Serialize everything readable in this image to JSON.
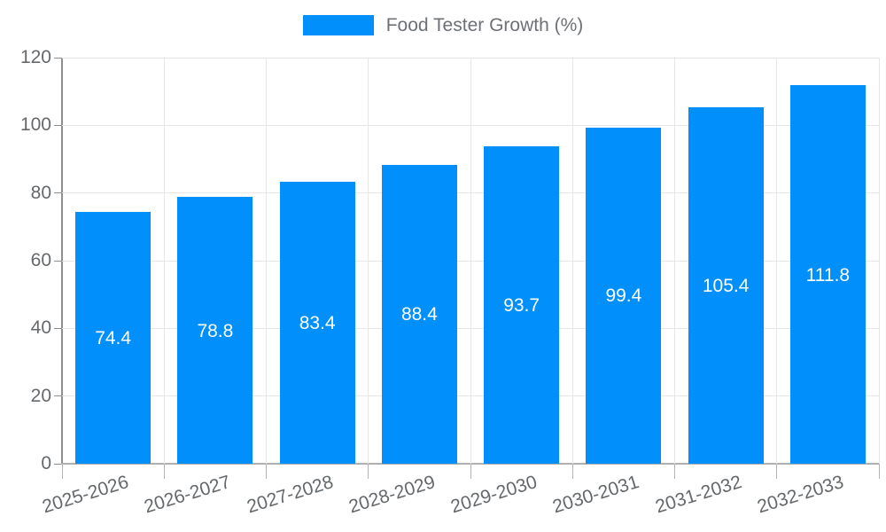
{
  "chart_data": {
    "type": "bar",
    "title": "Food Tester Growth (%)",
    "legend_entries": [
      "Food Tester Growth (%)"
    ],
    "legend_position": "top-center",
    "categories": [
      "2025-2026",
      "2026-2027",
      "2027-2028",
      "2028-2029",
      "2029-2030",
      "2030-2031",
      "2031-2032",
      "2032-2033"
    ],
    "values": [
      74.4,
      78.8,
      83.4,
      88.4,
      93.7,
      99.4,
      105.4,
      111.8
    ],
    "value_labels": [
      "74.4",
      "78.8",
      "83.4",
      "88.4",
      "93.7",
      "99.4",
      "105.4",
      "111.8"
    ],
    "xlabel": "",
    "ylabel": "",
    "ylim": [
      0,
      120
    ],
    "yticks": [
      0,
      20,
      40,
      60,
      80,
      100,
      120
    ],
    "ytick_labels": [
      "0",
      "20",
      "40",
      "60",
      "80",
      "100",
      "120"
    ],
    "grid": true
  },
  "colors": {
    "bar": "#008FFB",
    "value_label_text": "#ffffff",
    "axis_text": "#65696c",
    "legend_text": "#6d7175",
    "grid_line": "#e7e7e7",
    "axis_line": "#8f8f8f",
    "bottom_axis_line": "#b0b0b0",
    "tick_mark": "#b3b3b3",
    "background": "#ffffff"
  }
}
